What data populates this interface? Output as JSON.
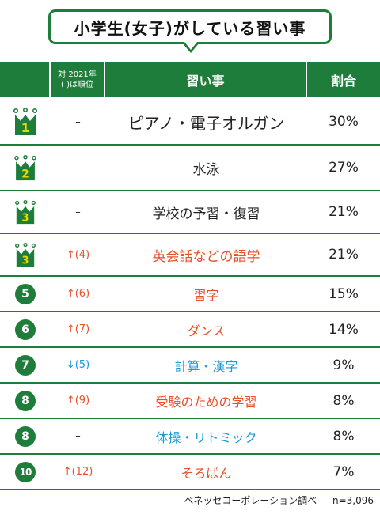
{
  "title": "小学生(女子)がしている習い事",
  "header": {
    "change_line1": "対 2021年",
    "change_line2": "( )は順位",
    "name": "習い事",
    "pct": "割合"
  },
  "colors": {
    "green": "#1e7d3a",
    "gold": "#e8d800",
    "red": "#e8502a",
    "blue": "#1a9ad6"
  },
  "rows": [
    {
      "rank": "1",
      "crown": true,
      "change": "–",
      "name": "ピアノ・電子オルガン",
      "pct": "30%",
      "color": "#222222"
    },
    {
      "rank": "2",
      "crown": true,
      "change": "–",
      "name": "水泳",
      "pct": "27%",
      "color": "#222222"
    },
    {
      "rank": "3",
      "crown": true,
      "change": "–",
      "name": "学校の予習・復習",
      "pct": "21%",
      "color": "#222222"
    },
    {
      "rank": "3",
      "crown": true,
      "change": "↑(4)",
      "name": "英会話などの語学",
      "pct": "21%",
      "color": "#e8502a"
    },
    {
      "rank": "5",
      "crown": false,
      "change": "↑(6)",
      "name": "習字",
      "pct": "15%",
      "color": "#e8502a"
    },
    {
      "rank": "6",
      "crown": false,
      "change": "↑(7)",
      "name": "ダンス",
      "pct": "14%",
      "color": "#e8502a"
    },
    {
      "rank": "7",
      "crown": false,
      "change": "↓(5)",
      "name": "計算・漢字",
      "pct": "9%",
      "color": "#1a9ad6"
    },
    {
      "rank": "8",
      "crown": false,
      "change": "↑(9)",
      "name": "受験のための学習",
      "pct": "8%",
      "color": "#e8502a"
    },
    {
      "rank": "8",
      "crown": false,
      "change": "–",
      "name": "体操・リトミック",
      "pct": "8%",
      "color": "#1a9ad6"
    },
    {
      "rank": "10",
      "crown": false,
      "change": "↑(12)",
      "name": "そろばん",
      "pct": "7%",
      "color": "#e8502a"
    }
  ],
  "footer": {
    "source": "ベネッセコーポレーション調べ",
    "n": "n=3,096"
  }
}
